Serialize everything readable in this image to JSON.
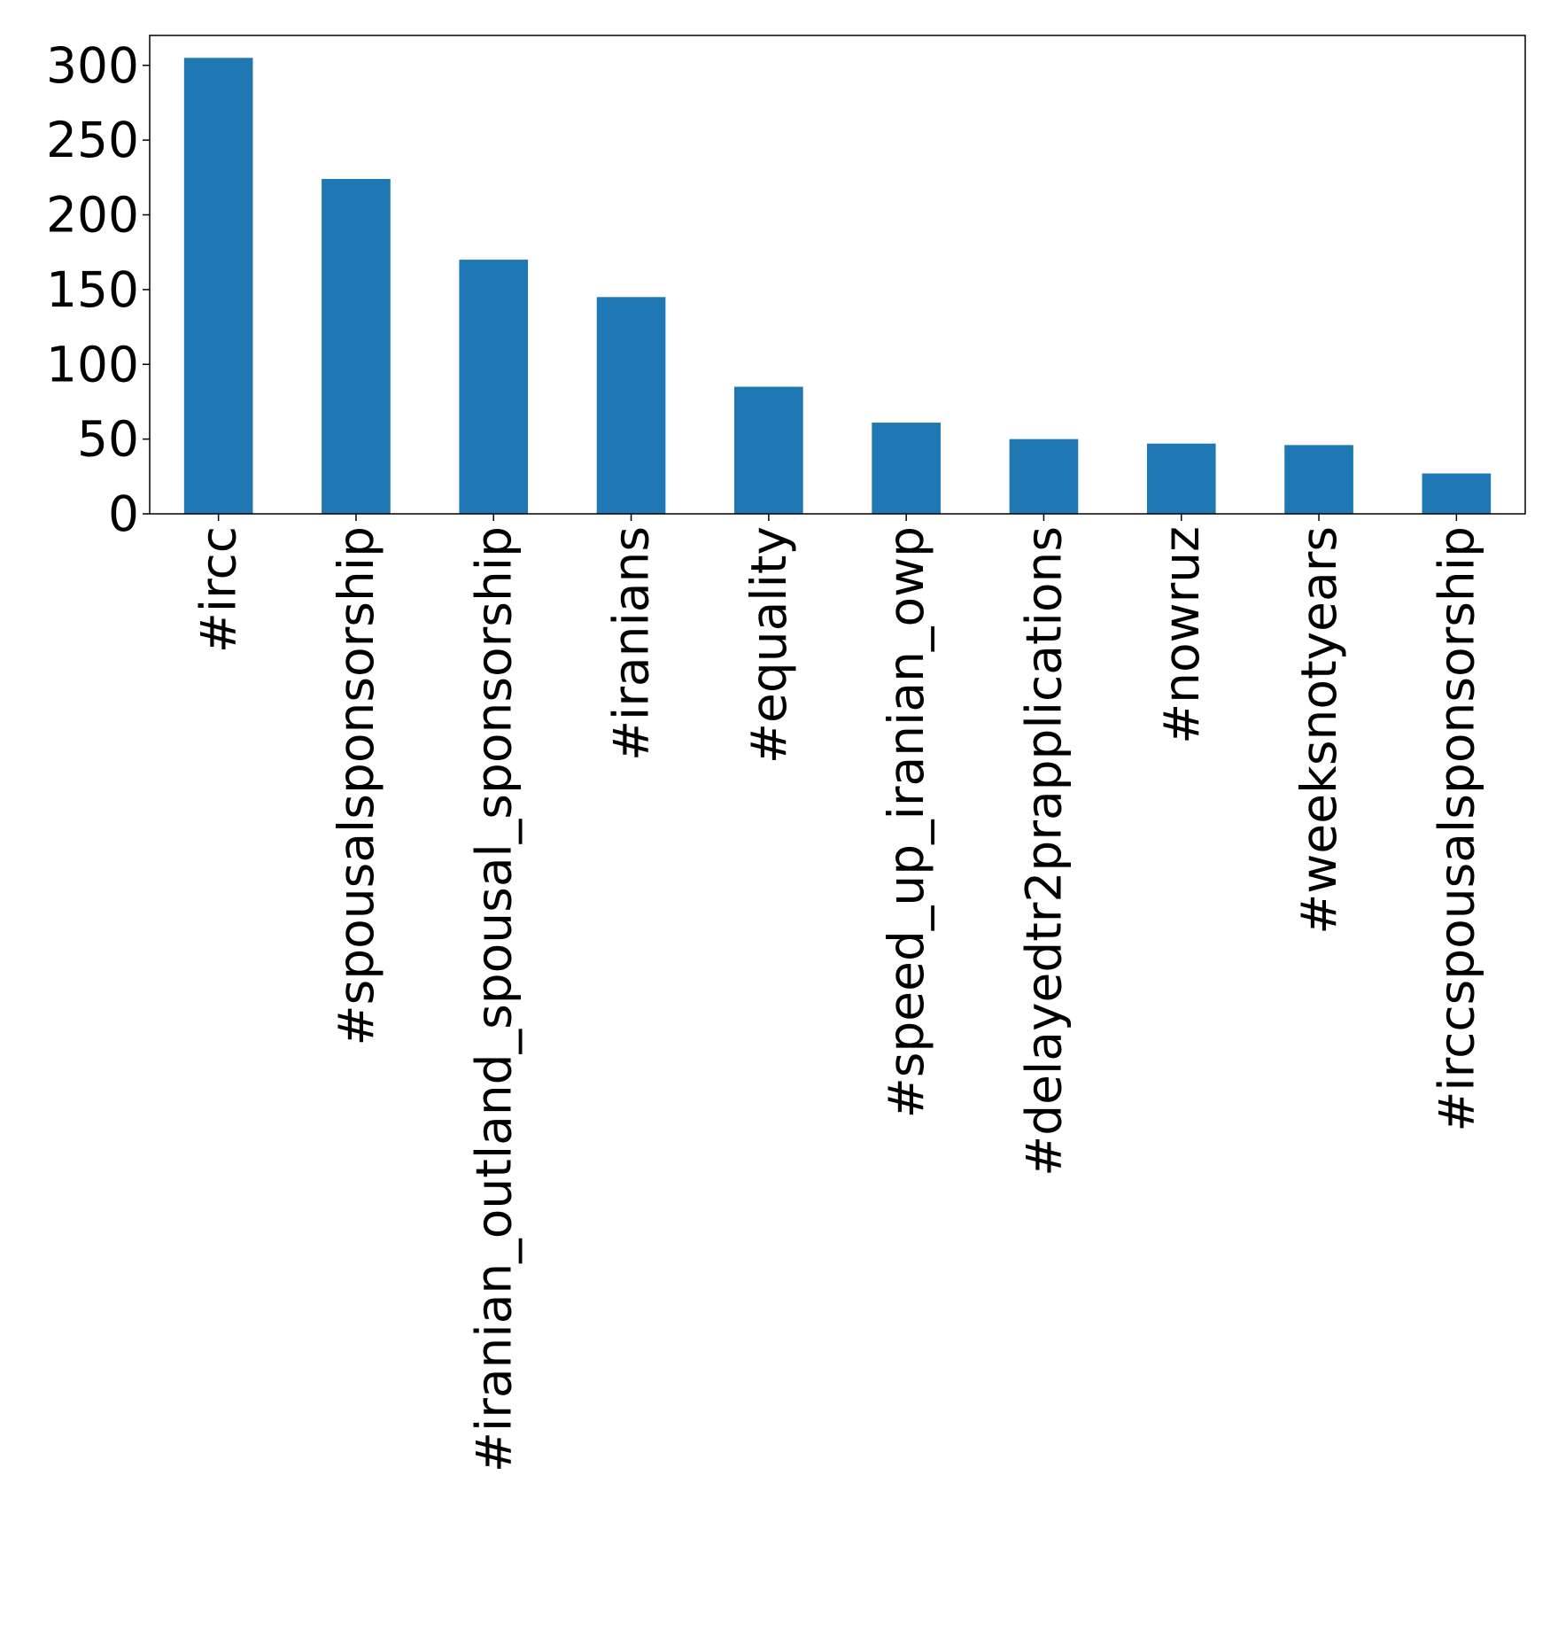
{
  "chart_data": {
    "type": "bar",
    "title": "",
    "xlabel": "",
    "ylabel": "",
    "categories": [
      "#ircc",
      "#spousalsponsorship",
      "#iranian_outland_spousal_sponsorship",
      "#iranians",
      "#equality",
      "#speed_up_iranian_owp",
      "#delayedtr2prapplications",
      "#nowruz",
      "#weeksnotyears",
      "#irccspousalsponsorship"
    ],
    "values": [
      305,
      224,
      170,
      145,
      85,
      61,
      50,
      47,
      46,
      27
    ],
    "yticks": [
      0,
      50,
      100,
      150,
      200,
      250,
      300
    ],
    "ylim": [
      0,
      320
    ],
    "grid": false,
    "legend": "none",
    "colors": {
      "bar": "#1f77b4",
      "axis": "#000000",
      "background": "#ffffff"
    }
  }
}
